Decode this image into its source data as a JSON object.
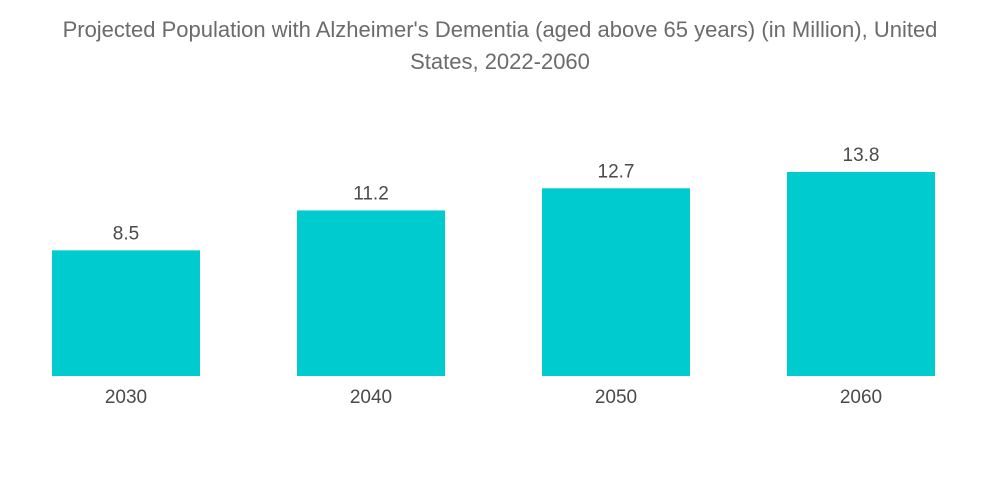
{
  "chart_data": {
    "type": "bar",
    "title_lines": [
      "Projected Population with Alzheimer's Dementia (aged above 65 years) (in Million), United",
      "States, 2022-2060"
    ],
    "categories": [
      "2030",
      "2040",
      "2050",
      "2060"
    ],
    "values": [
      8.5,
      11.2,
      12.7,
      13.8
    ],
    "data_labels": [
      "8.5",
      "11.2",
      "12.7",
      "13.8"
    ],
    "xlabel": "",
    "ylabel": "",
    "ylim": [
      0,
      13.8
    ],
    "grid": false,
    "legend": "none",
    "bar_color": "#00cccf"
  }
}
